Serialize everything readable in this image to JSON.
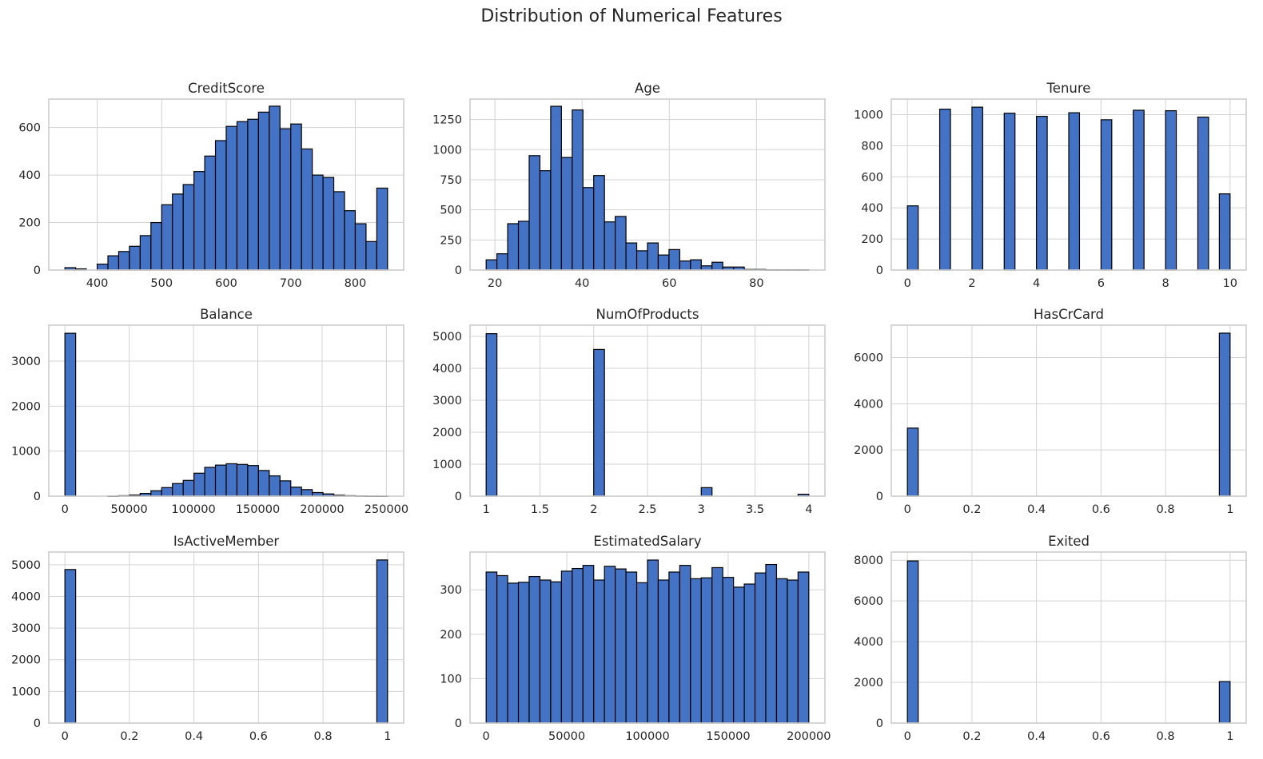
{
  "figure": {
    "title": "Distribution of Numerical Features",
    "bar_color": "#4472c4",
    "edge_color": "#000000",
    "grid": true
  },
  "chart_data": [
    {
      "type": "bar",
      "title": "CreditScore",
      "x_range": [
        350,
        850
      ],
      "xlim": [
        325,
        875
      ],
      "ylim": [
        0,
        720
      ],
      "xticks": [
        400,
        500,
        600,
        700,
        800
      ],
      "yticks": [
        0,
        200,
        400,
        600
      ],
      "values": [
        10,
        5,
        0,
        25,
        60,
        78,
        100,
        145,
        200,
        275,
        320,
        360,
        415,
        480,
        545,
        605,
        625,
        635,
        665,
        690,
        595,
        615,
        510,
        400,
        390,
        330,
        250,
        195,
        120,
        345
      ]
    },
    {
      "type": "bar",
      "title": "Age",
      "x_range": [
        18,
        92
      ],
      "xlim": [
        14.3,
        95.7
      ],
      "ylim": [
        0,
        1420
      ],
      "xticks": [
        20,
        40,
        60,
        80
      ],
      "yticks": [
        0,
        250,
        500,
        750,
        1000,
        1250
      ],
      "values": [
        85,
        135,
        385,
        405,
        950,
        825,
        1360,
        935,
        1330,
        685,
        785,
        400,
        445,
        225,
        160,
        225,
        125,
        170,
        75,
        85,
        35,
        65,
        25,
        25,
        5,
        5,
        2,
        2,
        2,
        2
      ]
    },
    {
      "type": "bar",
      "title": "Tenure",
      "x_range": [
        0,
        10
      ],
      "xlim": [
        -0.5,
        10.5
      ],
      "ylim": [
        0,
        1100
      ],
      "xticks": [
        0,
        2,
        4,
        6,
        8,
        10
      ],
      "yticks": [
        0,
        200,
        400,
        600,
        800,
        1000
      ],
      "values": [
        413,
        0,
        0,
        1035,
        0,
        0,
        1048,
        0,
        0,
        1009,
        0,
        0,
        989,
        0,
        0,
        1012,
        0,
        0,
        967,
        0,
        0,
        1028,
        0,
        0,
        1025,
        0,
        0,
        984,
        0,
        490
      ]
    },
    {
      "type": "bar",
      "title": "Balance",
      "x_range": [
        0,
        250898
      ],
      "xlim": [
        -12545,
        263443
      ],
      "ylim": [
        0,
        3800
      ],
      "xticks": [
        0,
        50000,
        100000,
        150000,
        200000,
        250000
      ],
      "yticks": [
        0,
        1000,
        2000,
        3000
      ],
      "values": [
        3620,
        0,
        0,
        0,
        2,
        10,
        25,
        60,
        120,
        190,
        280,
        350,
        510,
        640,
        690,
        720,
        705,
        680,
        570,
        450,
        340,
        200,
        145,
        80,
        50,
        20,
        10,
        5,
        2,
        2
      ]
    },
    {
      "type": "bar",
      "title": "NumOfProducts",
      "x_range": [
        1,
        4
      ],
      "xlim": [
        0.85,
        4.15
      ],
      "ylim": [
        0,
        5350
      ],
      "xticks": [
        1.0,
        1.5,
        2.0,
        2.5,
        3.0,
        3.5,
        4.0
      ],
      "yticks": [
        0,
        1000,
        2000,
        3000,
        4000,
        5000
      ],
      "values": [
        5084,
        0,
        0,
        0,
        0,
        0,
        0,
        0,
        0,
        0,
        4590,
        0,
        0,
        0,
        0,
        0,
        0,
        0,
        0,
        0,
        266,
        0,
        0,
        0,
        0,
        0,
        0,
        0,
        0,
        60
      ]
    },
    {
      "type": "bar",
      "title": "HasCrCard",
      "x_range": [
        0,
        1
      ],
      "xlim": [
        -0.05,
        1.05
      ],
      "ylim": [
        0,
        7400
      ],
      "xticks": [
        0.0,
        0.2,
        0.4,
        0.6,
        0.8,
        1.0
      ],
      "yticks": [
        0,
        2000,
        4000,
        6000
      ],
      "values": [
        2945,
        0,
        0,
        0,
        0,
        0,
        0,
        0,
        0,
        0,
        0,
        0,
        0,
        0,
        0,
        0,
        0,
        0,
        0,
        0,
        0,
        0,
        0,
        0,
        0,
        0,
        0,
        0,
        0,
        7055
      ]
    },
    {
      "type": "bar",
      "title": "IsActiveMember",
      "x_range": [
        0,
        1
      ],
      "xlim": [
        -0.05,
        1.05
      ],
      "ylim": [
        0,
        5400
      ],
      "xticks": [
        0.0,
        0.2,
        0.4,
        0.6,
        0.8,
        1.0
      ],
      "yticks": [
        0,
        1000,
        2000,
        3000,
        4000,
        5000
      ],
      "values": [
        4849,
        0,
        0,
        0,
        0,
        0,
        0,
        0,
        0,
        0,
        0,
        0,
        0,
        0,
        0,
        0,
        0,
        0,
        0,
        0,
        0,
        0,
        0,
        0,
        0,
        0,
        0,
        0,
        0,
        5151
      ]
    },
    {
      "type": "bar",
      "title": "EstimatedSalary",
      "x_range": [
        11.58,
        199992
      ],
      "xlim": [
        -9987,
        209991
      ],
      "ylim": [
        0,
        385
      ],
      "xticks": [
        0,
        50000,
        100000,
        150000,
        200000
      ],
      "yticks": [
        0,
        100,
        200,
        300
      ],
      "values": [
        340,
        332,
        315,
        317,
        330,
        322,
        318,
        342,
        348,
        355,
        322,
        353,
        347,
        340,
        316,
        367,
        322,
        340,
        355,
        325,
        327,
        350,
        328,
        306,
        313,
        338,
        357,
        325,
        322,
        340
      ]
    },
    {
      "type": "bar",
      "title": "Exited",
      "x_range": [
        0,
        1
      ],
      "xlim": [
        -0.05,
        1.05
      ],
      "ylim": [
        0,
        8400
      ],
      "xticks": [
        0.0,
        0.2,
        0.4,
        0.6,
        0.8,
        1.0
      ],
      "yticks": [
        0,
        2000,
        4000,
        6000,
        8000
      ],
      "values": [
        7963,
        0,
        0,
        0,
        0,
        0,
        0,
        0,
        0,
        0,
        0,
        0,
        0,
        0,
        0,
        0,
        0,
        0,
        0,
        0,
        0,
        0,
        0,
        0,
        0,
        0,
        0,
        0,
        0,
        2037
      ]
    }
  ]
}
